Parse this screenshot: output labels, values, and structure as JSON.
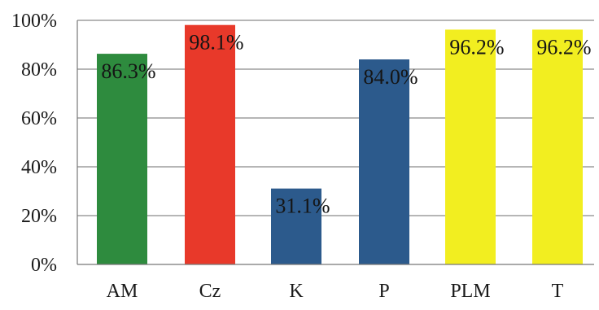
{
  "chart_data": {
    "type": "bar",
    "title": "",
    "xlabel": "",
    "ylabel": "",
    "categories": [
      "AM",
      "Cz",
      "K",
      "P",
      "PLM",
      "T"
    ],
    "values": [
      86.3,
      98.1,
      31.1,
      84.0,
      96.2,
      96.2
    ],
    "value_labels": [
      "86.3%",
      "98.1%",
      "31.1%",
      "84.0%",
      "96.2%",
      "96.2%"
    ],
    "bar_colors": [
      "#2e8b3e",
      "#e8392a",
      "#2c5a8c",
      "#2c5a8c",
      "#f2ee20",
      "#f2ee20"
    ],
    "ylim": [
      0,
      100
    ],
    "yticks": [
      0,
      20,
      40,
      60,
      80,
      100
    ],
    "ytick_labels": [
      "0%",
      "20%",
      "40%",
      "60%",
      "80%",
      "100%"
    ],
    "grid": true,
    "legend": "none"
  }
}
